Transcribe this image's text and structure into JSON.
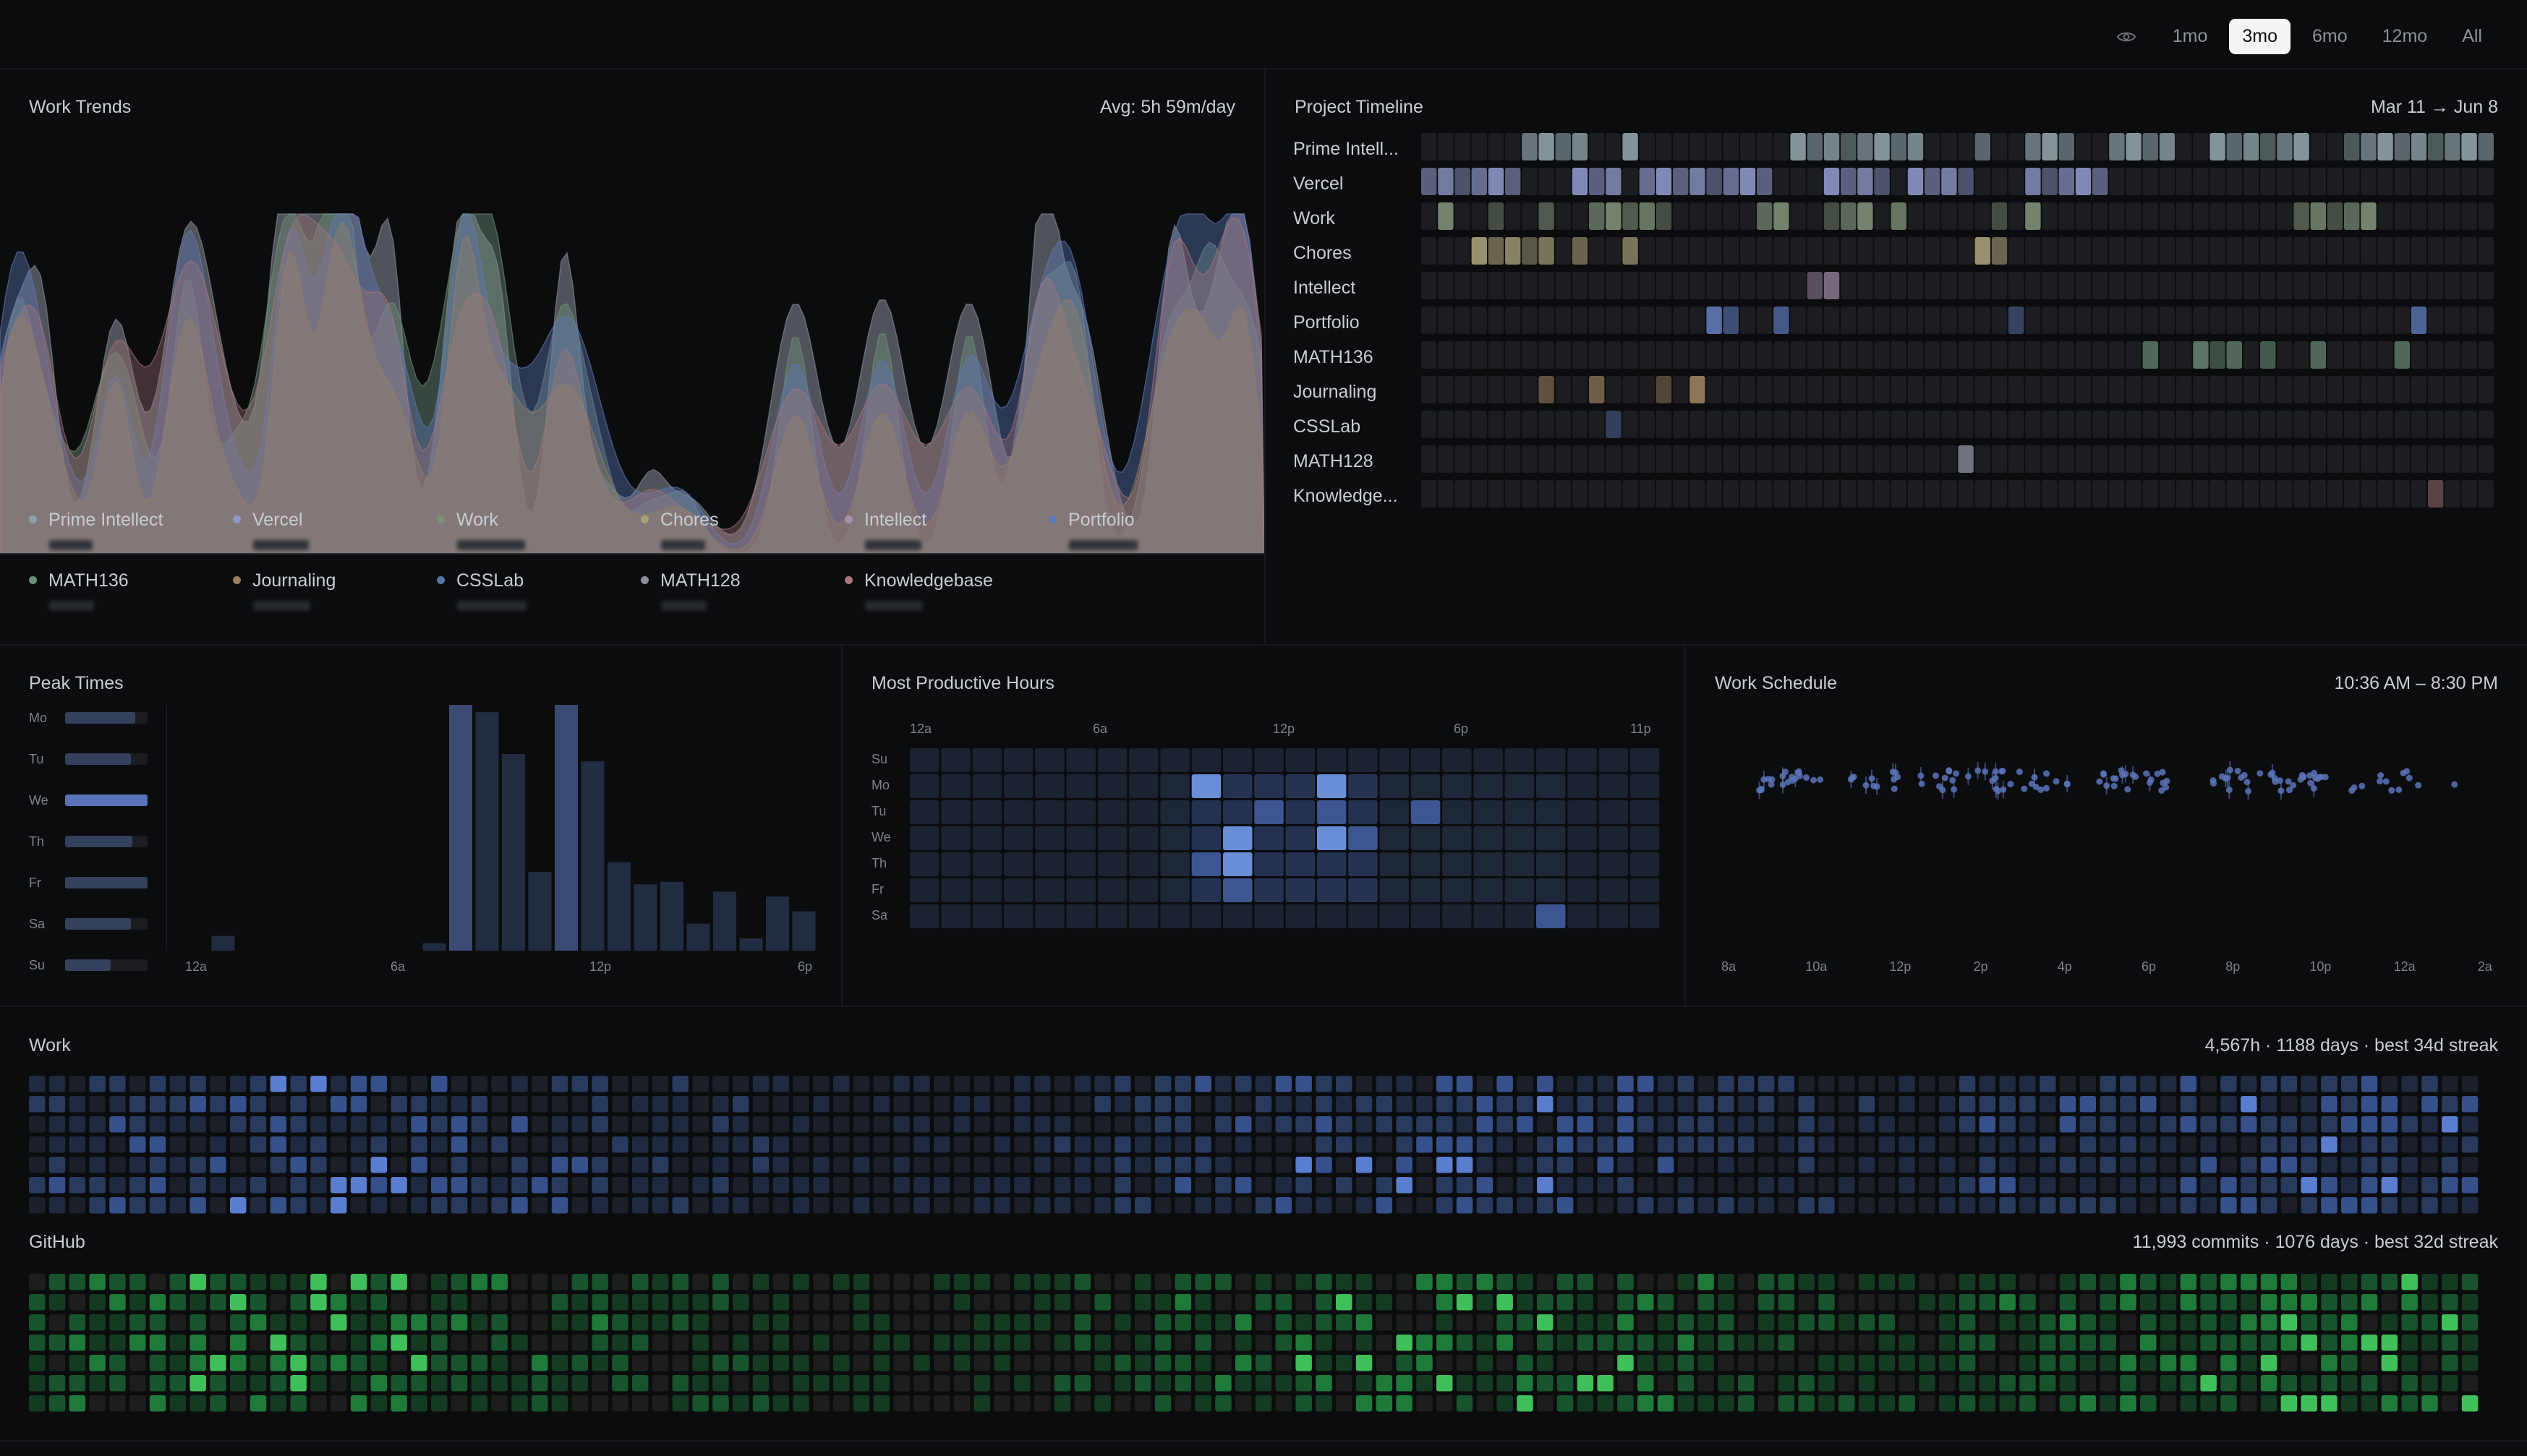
{
  "range_selector": {
    "icon": "eye-icon",
    "options": [
      "1mo",
      "3mo",
      "6mo",
      "12mo",
      "All"
    ],
    "active": "3mo"
  },
  "work_trends": {
    "title": "Work Trends",
    "avg": "Avg: 5h 59m/day"
  },
  "projects": [
    {
      "name": "Prime Intellect",
      "short": "Prime Intell...",
      "color": "#8fa3a6"
    },
    {
      "name": "Vercel",
      "short": "Vercel",
      "color": "#8d97c8"
    },
    {
      "name": "Work",
      "short": "Work",
      "color": "#7e8e78"
    },
    {
      "name": "Chores",
      "short": "Chores",
      "color": "#a7a07a"
    },
    {
      "name": "Intellect",
      "short": "Intellect",
      "color": "#a791a8"
    },
    {
      "name": "Portfolio",
      "short": "Portfolio",
      "color": "#5f79b8"
    },
    {
      "name": "MATH136",
      "short": "MATH136",
      "color": "#6d8f7a"
    },
    {
      "name": "Journaling",
      "short": "Journaling",
      "color": "#9a8160"
    },
    {
      "name": "CSSLab",
      "short": "CSSLab",
      "color": "#5a73a3"
    },
    {
      "name": "MATH128",
      "short": "MATH128",
      "color": "#8a8f99"
    },
    {
      "name": "Knowledgebase",
      "short": "Knowledge...",
      "color": "#a7767c"
    }
  ],
  "timeline": {
    "title": "Project Timeline",
    "range": "Mar 11 → Jun 8"
  },
  "peak_times": {
    "title": "Peak Times",
    "days": [
      "Mo",
      "Tu",
      "We",
      "Th",
      "Fr",
      "Sa",
      "Su"
    ],
    "day_levels": [
      0.85,
      0.8,
      1.0,
      0.82,
      1.0,
      0.8,
      0.55
    ],
    "x_ticks": [
      "12a",
      "6a",
      "12p",
      "6p"
    ],
    "hour_values": [
      0,
      0.06,
      0,
      0,
      0,
      0,
      0,
      0,
      0,
      0.03,
      1.0,
      0.97,
      0.8,
      0.32,
      1.0,
      0.77,
      0.36,
      0.27,
      0.28,
      0.11,
      0.24,
      0.05,
      0.22,
      0.16,
      0.13,
      0.22
    ]
  },
  "productive_hours": {
    "title": "Most Productive Hours",
    "x_ticks": [
      "12a",
      "6a",
      "12p",
      "6p",
      "11p"
    ],
    "days": [
      "Su",
      "Mo",
      "Tu",
      "We",
      "Th",
      "Fr",
      "Sa"
    ]
  },
  "schedule": {
    "title": "Work Schedule",
    "range": "10:36 AM – 8:30 PM",
    "x_ticks": [
      "8a",
      "10a",
      "12p",
      "2p",
      "4p",
      "6p",
      "8p",
      "10p",
      "12a",
      "2a"
    ]
  },
  "work_heatmap": {
    "title": "Work",
    "stats": "4,567h · 1188 days · best 34d streak"
  },
  "github_heatmap": {
    "title": "GitHub",
    "stats": "11,993 commits · 1076 days · best 32d streak"
  }
}
